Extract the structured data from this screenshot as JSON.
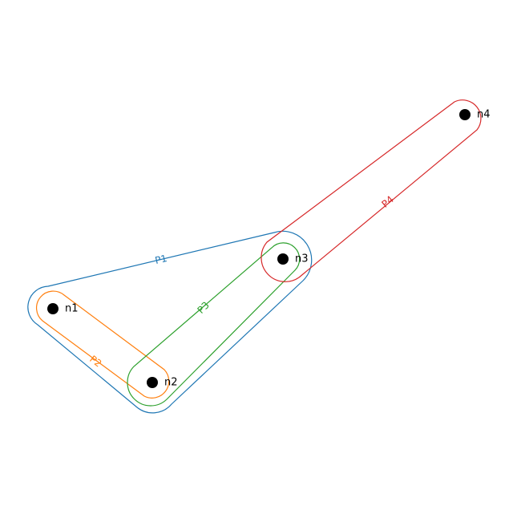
{
  "nodes": [
    {
      "id": "n1",
      "label": "n1"
    },
    {
      "id": "n2",
      "label": "n2"
    },
    {
      "id": "n3",
      "label": "n3"
    },
    {
      "id": "n4",
      "label": "n4"
    }
  ],
  "hyperedges": [
    {
      "id": "P1",
      "label": "P1",
      "color": "#1f77b4",
      "members": [
        "n1",
        "n2",
        "n3"
      ]
    },
    {
      "id": "P2",
      "label": "P2",
      "color": "#ff7f0e",
      "members": [
        "n1",
        "n2"
      ]
    },
    {
      "id": "P3",
      "label": "P3",
      "color": "#2ca02c",
      "members": [
        "n2",
        "n3"
      ]
    },
    {
      "id": "P4",
      "label": "P4",
      "color": "#d62728",
      "members": [
        "n3",
        "n4"
      ]
    }
  ]
}
